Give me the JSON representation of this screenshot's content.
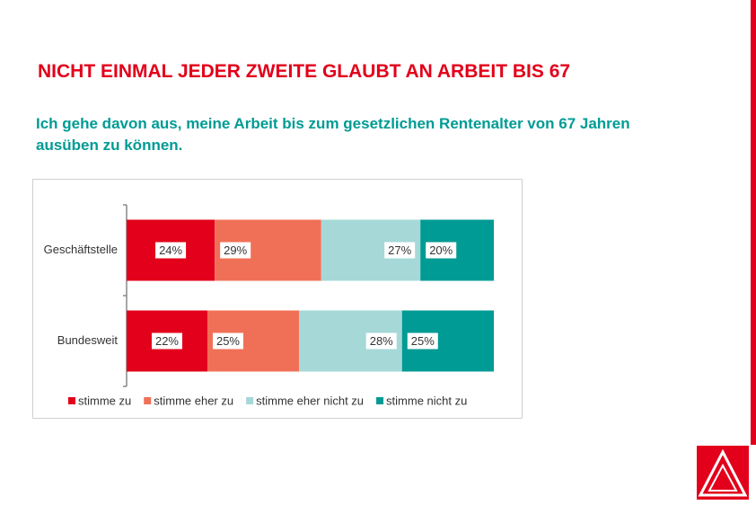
{
  "title": "NICHT EINMAL JEDER ZWEITE GLAUBT AN ARBEIT BIS 67",
  "subtitle": "Ich gehe davon aus, meine Arbeit bis zum gesetzlichen Rentenalter von 67 Jahren ausüben zu können.",
  "chart_data": {
    "type": "stacked_bar_horizontal",
    "categories": [
      "Geschäftstelle",
      "Bundesweit"
    ],
    "xlim": [
      0,
      100
    ],
    "series": [
      {
        "name": "stimme zu",
        "color": "#e2001a",
        "values": [
          24,
          22
        ],
        "value_labels": [
          "24%",
          "22%"
        ]
      },
      {
        "name": "stimme eher zu",
        "color": "#f07057",
        "values": [
          29,
          25
        ],
        "value_labels": [
          "29%",
          "25%"
        ]
      },
      {
        "name": "stimme eher nicht zu",
        "color": "#a6d8d8",
        "values": [
          27,
          28
        ],
        "value_labels": [
          "27%",
          "28%"
        ]
      },
      {
        "name": "stimme nicht zu",
        "color": "#009b94",
        "values": [
          20,
          25
        ],
        "value_labels": [
          "20%",
          "25%"
        ]
      }
    ]
  }
}
